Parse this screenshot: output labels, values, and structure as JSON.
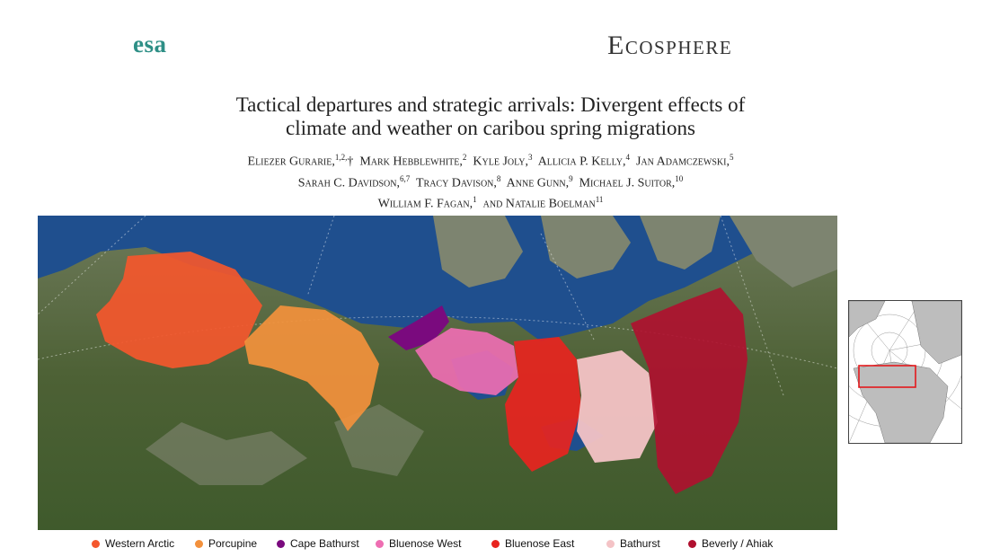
{
  "header": {
    "logo": "esa",
    "journal": "Ecosphere"
  },
  "article": {
    "title_line1": "Tactical departures and strategic arrivals: Divergent effects of",
    "title_line2": "climate and weather on caribou spring migrations",
    "authors": [
      {
        "name": "Eliezer Gurarie,",
        "sup": "1,2,",
        "after": "†"
      },
      {
        "name": "Mark Hebblewhite,",
        "sup": "2"
      },
      {
        "name": "Kyle Joly,",
        "sup": "3"
      },
      {
        "name": "Allicia P. Kelly,",
        "sup": "4"
      },
      {
        "name": "Jan Adamczewski,",
        "sup": "5"
      },
      {
        "name": "Sarah C. Davidson,",
        "sup": "6,7"
      },
      {
        "name": "Tracy Davison,",
        "sup": "8"
      },
      {
        "name": "Anne Gunn,",
        "sup": "9"
      },
      {
        "name": "Michael J. Suitor,",
        "sup": "10"
      },
      {
        "name": "William F. Fagan,",
        "sup": "1"
      },
      {
        "name": "and Natalie Boelman",
        "sup": "11"
      }
    ]
  },
  "figure": {
    "legend": [
      {
        "label": "Western Arctic",
        "color": "#f4572d"
      },
      {
        "label": "Porcupine",
        "color": "#f3913c"
      },
      {
        "label": "Cape Bathurst",
        "color": "#7a0a7e"
      },
      {
        "label": "Bluenose West",
        "color": "#ee6eb2"
      },
      {
        "label": "Bluenose East",
        "color": "#e8241f"
      },
      {
        "label": "Bathurst",
        "color": "#f4c3c6"
      },
      {
        "label": "Beverly / Ahiak",
        "color": "#b0102f"
      }
    ]
  }
}
